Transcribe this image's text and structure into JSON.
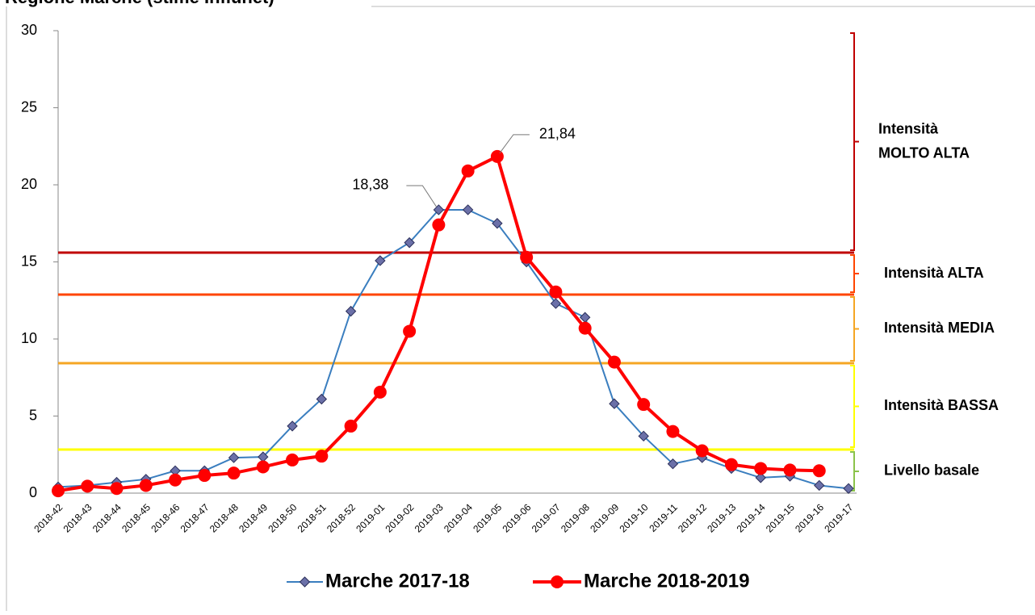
{
  "chart_data": {
    "type": "line",
    "title": "Regione Marche (stime Influnet)",
    "categories": [
      "2018-42",
      "2018-43",
      "2018-44",
      "2018-45",
      "2018-46",
      "2018-47",
      "2018-48",
      "2018-49",
      "2018-50",
      "2018-51",
      "2018-52",
      "2019-01",
      "2019-02",
      "2019-03",
      "2019-04",
      "2019-05",
      "2019-06",
      "2019-07",
      "2019-08",
      "2019-09",
      "2019-10",
      "2019-11",
      "2019-12",
      "2019-13",
      "2019-14",
      "2019-15",
      "2019-16",
      "2019-17"
    ],
    "series": [
      {
        "name": "Marche 2017-18",
        "color": "#3a7ebf",
        "marker": "diamond",
        "values": [
          0.4,
          0.5,
          0.7,
          0.9,
          1.45,
          1.45,
          2.3,
          2.35,
          4.35,
          6.1,
          11.8,
          15.08,
          16.25,
          18.38,
          18.38,
          17.5,
          15.0,
          12.3,
          11.4,
          5.8,
          3.7,
          1.9,
          2.3,
          1.6,
          1.0,
          1.1,
          0.5,
          0.3
        ],
        "value_labels": [
          null,
          null,
          null,
          null,
          null,
          null,
          null,
          null,
          null,
          null,
          null,
          null,
          null,
          "18,38",
          null,
          null,
          null,
          null,
          null,
          null,
          null,
          null,
          null,
          null,
          null,
          null,
          null,
          null
        ]
      },
      {
        "name": "Marche 2018-2019",
        "color": "#ff0000",
        "marker": "circle",
        "values": [
          0.15,
          0.45,
          0.3,
          0.5,
          0.85,
          1.15,
          1.3,
          1.7,
          2.15,
          2.4,
          4.35,
          6.55,
          10.5,
          17.4,
          20.9,
          21.84,
          15.3,
          13.05,
          10.7,
          8.5,
          5.75,
          4.0,
          2.75,
          1.85,
          1.6,
          1.5,
          1.45,
          null
        ],
        "value_labels": [
          null,
          null,
          null,
          null,
          null,
          null,
          null,
          null,
          null,
          null,
          null,
          null,
          null,
          null,
          null,
          "21,84",
          null,
          null,
          null,
          null,
          null,
          null,
          null,
          null,
          null,
          null,
          null,
          null
        ]
      }
    ],
    "ylim": [
      0,
      30
    ],
    "yticks": [
      0,
      5,
      10,
      15,
      20,
      25,
      30
    ],
    "grid": false,
    "legend": "bottom",
    "bands": [
      {
        "label_lines": [
          "Livello basale"
        ],
        "from": 0,
        "to": 2.83,
        "color": "#8bc34a",
        "line_color": "#ffff00"
      },
      {
        "label_lines": [
          "Intensità BASSA"
        ],
        "from": 2.83,
        "to": 8.43,
        "color": "#ffff00",
        "line_color": "#f5a623"
      },
      {
        "label_lines": [
          "Intensità MEDIA"
        ],
        "from": 8.43,
        "to": 12.88,
        "color": "#f5a623",
        "line_color": "#ff4500"
      },
      {
        "label_lines": [
          "Intensità ALTA"
        ],
        "from": 12.88,
        "to": 15.6,
        "color": "#ff4500",
        "line_color": "#c00000"
      },
      {
        "label_lines": [
          "Intensità",
          "MOLTO ALTA"
        ],
        "from": 15.6,
        "to": 30,
        "color": "#c00000",
        "line_color": null
      }
    ]
  }
}
